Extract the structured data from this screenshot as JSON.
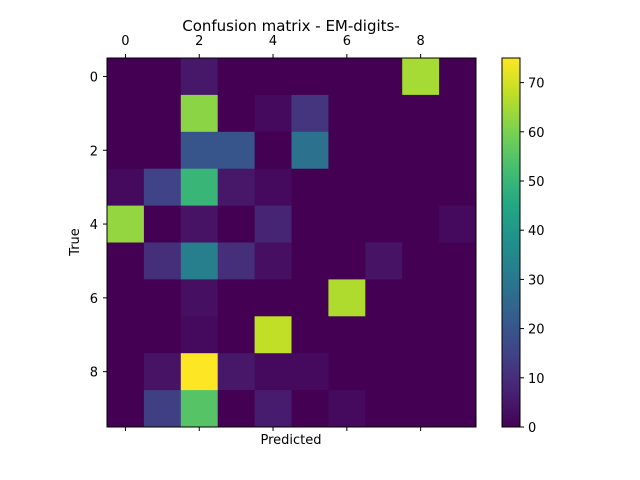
{
  "chart_data": {
    "type": "heatmap",
    "title": "Confusion matrix - EM-digits-",
    "xlabel": "Predicted",
    "ylabel": "True",
    "x_tick_labels": [
      "0",
      "2",
      "4",
      "6",
      "8"
    ],
    "x_tick_values": [
      0,
      2,
      4,
      6,
      8
    ],
    "y_tick_labels": [
      "0",
      "2",
      "4",
      "6",
      "8"
    ],
    "y_tick_values": [
      0,
      2,
      4,
      6,
      8
    ],
    "colorbar": {
      "range": [
        0,
        75
      ],
      "tick_values": [
        0,
        10,
        20,
        30,
        40,
        50,
        60,
        70
      ],
      "tick_labels": [
        "0",
        "10",
        "20",
        "30",
        "40",
        "50",
        "60",
        "70"
      ]
    },
    "colormap": "viridis",
    "matrix": [
      [
        0,
        0,
        5,
        0,
        0,
        0,
        0,
        0,
        65,
        0
      ],
      [
        0,
        0,
        62,
        0,
        2,
        12,
        0,
        0,
        0,
        0
      ],
      [
        0,
        0,
        20,
        20,
        0,
        28,
        0,
        0,
        0,
        0
      ],
      [
        2,
        15,
        50,
        5,
        2,
        0,
        0,
        0,
        0,
        0
      ],
      [
        63,
        0,
        4,
        0,
        8,
        0,
        0,
        0,
        0,
        2
      ],
      [
        0,
        10,
        32,
        10,
        3,
        0,
        0,
        4,
        0,
        0
      ],
      [
        0,
        0,
        3,
        0,
        0,
        0,
        66,
        0,
        0,
        0
      ],
      [
        0,
        0,
        2,
        0,
        68,
        0,
        0,
        0,
        0,
        0
      ],
      [
        0,
        4,
        75,
        5,
        2,
        2,
        0,
        0,
        0,
        0
      ],
      [
        0,
        14,
        55,
        0,
        6,
        0,
        2,
        0,
        0,
        0
      ]
    ]
  }
}
